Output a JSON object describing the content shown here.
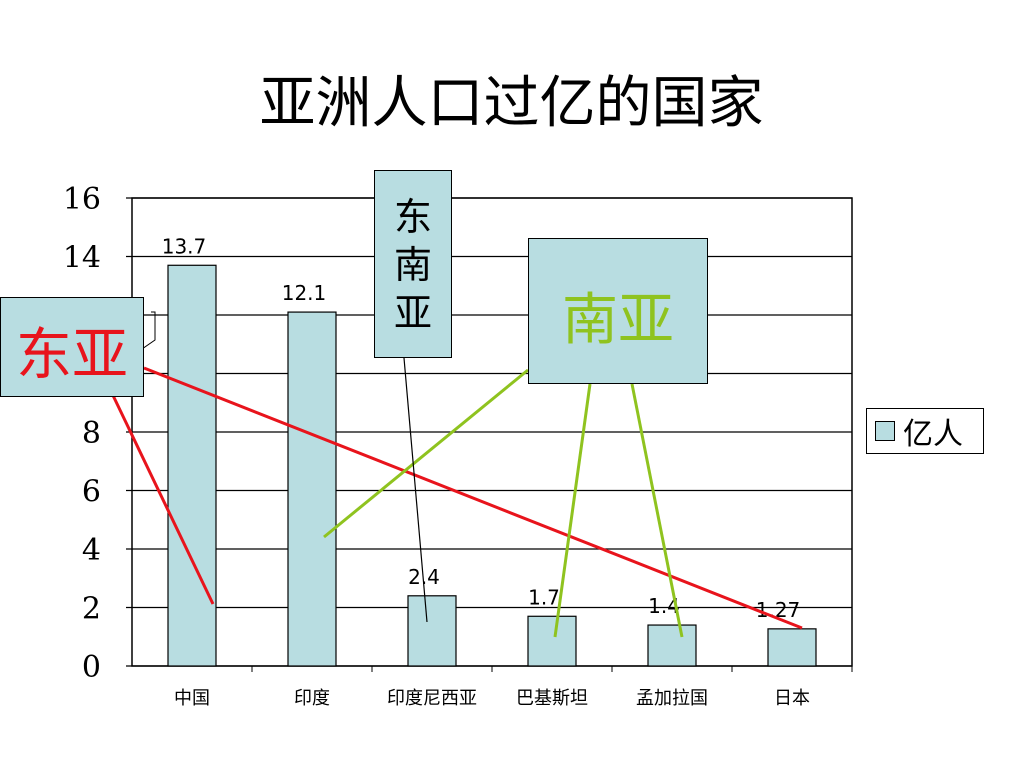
{
  "title": "亚洲人口过亿的国家",
  "legend": {
    "label": "亿人",
    "swatch_color": "#b8dde1"
  },
  "callouts": {
    "east_asia": {
      "label": "东亚",
      "color": "#e8141c"
    },
    "southeast_asia": {
      "chars": [
        "东",
        "南",
        "亚"
      ],
      "color": "#000000"
    },
    "south_asia": {
      "label": "南亚",
      "color": "#8fc31f"
    }
  },
  "chart_data": {
    "type": "bar",
    "categories": [
      "中国",
      "印度",
      "印度尼西亚",
      "巴基斯坦",
      "孟加拉国",
      "日本"
    ],
    "series": [
      {
        "name": "亿人",
        "values": [
          13.7,
          12.1,
          2.4,
          1.7,
          1.4,
          1.27
        ]
      }
    ],
    "data_labels": [
      "13.7",
      "12.1",
      "2.4",
      "1.7",
      "1.4",
      "1.27"
    ],
    "ylim": [
      0,
      16
    ],
    "yticks": [
      "0",
      "2",
      "4",
      "6",
      "8",
      "10",
      "12",
      "14",
      "16"
    ],
    "grid": true,
    "legend_position": "right",
    "bar_color": "#b8dde1"
  }
}
